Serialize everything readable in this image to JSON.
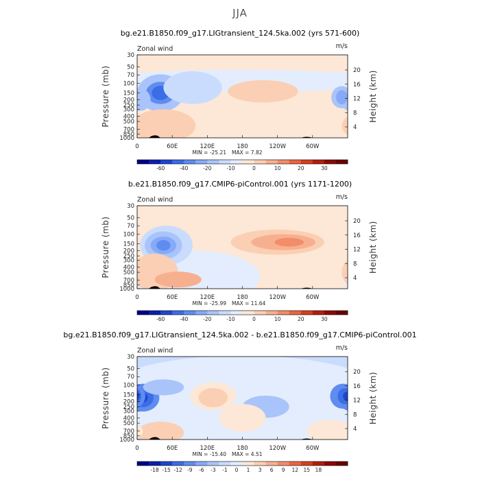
{
  "figure_title": "JJA",
  "chart_data": [
    {
      "type": "heatmap",
      "title": "bg.e21.B1850.f09_g17.LIGtransient_124.5ka.002 (yrs 571-600)",
      "variable": "Zonal wind",
      "units": "m/s",
      "ylabel": "Pressure (mb)",
      "ylabel_right": "Height (km)",
      "x_ticks": [
        "0",
        "60E",
        "120E",
        "180",
        "120W",
        "60W"
      ],
      "x_tick_values": [
        0,
        60,
        120,
        180,
        240,
        300
      ],
      "x_range": [
        0,
        360
      ],
      "y_ticks": [
        "30",
        "50",
        "70",
        "100",
        "150",
        "200",
        "250",
        "300",
        "400",
        "500",
        "700",
        "850",
        "1000"
      ],
      "y_tick_values": [
        30,
        50,
        70,
        100,
        150,
        200,
        250,
        300,
        400,
        500,
        700,
        850,
        1000
      ],
      "height_ticks": [
        "20",
        "16",
        "12",
        "8",
        "4"
      ],
      "min_text": "MIN = -25.21",
      "max_text": "MAX =   7.82",
      "colorbar_levels": [
        "-60",
        "-40",
        "-20",
        "-10",
        "0",
        "10",
        "20",
        "30"
      ],
      "colorbar_colors": [
        "#00008a",
        "#0c1fb0",
        "#1f45d0",
        "#3a6de6",
        "#5f8cf0",
        "#86aaf6",
        "#a9c4fa",
        "#cadcfd",
        "#e3edfe",
        "#fde7d6",
        "#fbcfb3",
        "#f7b08f",
        "#f28c69",
        "#e9663f",
        "#d63f1e",
        "#b21f0b",
        "#8a0a02",
        "#6b0000"
      ],
      "blobs": [
        {
          "x": 180,
          "p": 300,
          "rx": 230,
          "rp": 5.2,
          "level": 9
        },
        {
          "x": 180,
          "p": 90,
          "rx": 260,
          "rp": 1.6,
          "level": 8
        },
        {
          "x": 40,
          "p": 150,
          "rx": 40,
          "rp": 2.2,
          "level": 6
        },
        {
          "x": 40,
          "p": 150,
          "rx": 25,
          "rp": 1.6,
          "level": 4
        },
        {
          "x": 40,
          "p": 150,
          "rx": 15,
          "rp": 1.35,
          "level": 3
        },
        {
          "x": 5,
          "p": 200,
          "rx": 18,
          "rp": 1.6,
          "level": 6
        },
        {
          "x": 350,
          "p": 180,
          "rx": 18,
          "rp": 1.6,
          "level": 6
        },
        {
          "x": 350,
          "p": 180,
          "rx": 10,
          "rp": 1.35,
          "level": 5
        },
        {
          "x": 95,
          "p": 120,
          "rx": 50,
          "rp": 2.0,
          "level": 7
        },
        {
          "x": 215,
          "p": 140,
          "rx": 60,
          "rp": 1.6,
          "level": 10
        },
        {
          "x": 210,
          "p": 145,
          "rx": 32,
          "rp": 1.25,
          "level": 10
        },
        {
          "x": 45,
          "p": 600,
          "rx": 55,
          "rp": 2.0,
          "level": 10
        },
        {
          "x": 45,
          "p": 820,
          "rx": 25,
          "rp": 1.3,
          "level": 10
        }
      ]
    },
    {
      "type": "heatmap",
      "title": "b.e21.B1850.f09_g17.CMIP6-piControl.001 (yrs 1171-1200)",
      "variable": "Zonal wind",
      "units": "m/s",
      "ylabel": "Pressure (mb)",
      "ylabel_right": "Height (km)",
      "x_ticks": [
        "0",
        "60E",
        "120E",
        "180",
        "120W",
        "60W"
      ],
      "x_tick_values": [
        0,
        60,
        120,
        180,
        240,
        300
      ],
      "x_range": [
        0,
        360
      ],
      "y_ticks": [
        "30",
        "50",
        "70",
        "100",
        "150",
        "200",
        "250",
        "300",
        "400",
        "500",
        "700",
        "850",
        "1000"
      ],
      "y_tick_values": [
        30,
        50,
        70,
        100,
        150,
        200,
        250,
        300,
        400,
        500,
        700,
        850,
        1000
      ],
      "height_ticks": [
        "20",
        "16",
        "12",
        "8",
        "4"
      ],
      "min_text": "MIN = -25.99",
      "max_text": "MAX =  11.64",
      "colorbar_levels": [
        "-60",
        "-40",
        "-20",
        "-10",
        "0",
        "10",
        "20",
        "30"
      ],
      "colorbar_colors": [
        "#00008a",
        "#0c1fb0",
        "#1f45d0",
        "#3a6de6",
        "#5f8cf0",
        "#86aaf6",
        "#a9c4fa",
        "#cadcfd",
        "#e3edfe",
        "#fde7d6",
        "#fbcfb3",
        "#f7b08f",
        "#f28c69",
        "#e9663f",
        "#d63f1e",
        "#b21f0b",
        "#8a0a02",
        "#6b0000"
      ],
      "blobs": [
        {
          "x": 180,
          "p": 200,
          "rx": 260,
          "rp": 7.0,
          "level": 9
        },
        {
          "x": 100,
          "p": 600,
          "rx": 110,
          "rp": 3.0,
          "level": 8
        },
        {
          "x": 50,
          "p": 160,
          "rx": 45,
          "rp": 2.3,
          "level": 7
        },
        {
          "x": 45,
          "p": 160,
          "rx": 32,
          "rp": 1.8,
          "level": 6
        },
        {
          "x": 45,
          "p": 160,
          "rx": 22,
          "rp": 1.45,
          "level": 5
        },
        {
          "x": 45,
          "p": 160,
          "rx": 12,
          "rp": 1.25,
          "level": 4
        },
        {
          "x": 240,
          "p": 140,
          "rx": 80,
          "rp": 1.7,
          "level": 10
        },
        {
          "x": 250,
          "p": 140,
          "rx": 55,
          "rp": 1.4,
          "level": 11
        },
        {
          "x": 260,
          "p": 140,
          "rx": 25,
          "rp": 1.2,
          "level": 12
        },
        {
          "x": 30,
          "p": 500,
          "rx": 40,
          "rp": 2.2,
          "level": 10
        },
        {
          "x": 70,
          "p": 680,
          "rx": 40,
          "rp": 1.4,
          "level": 11
        }
      ]
    },
    {
      "type": "heatmap",
      "title": "bg.e21.B1850.f09_g17.LIGtransient_124.5ka.002 - b.e21.B1850.f09_g17.CMIP6-piControl.001",
      "variable": "Zonal wind",
      "units": "m/s",
      "ylabel": "Pressure (mb)",
      "ylabel_right": "Height (km)",
      "x_ticks": [
        "0",
        "60E",
        "120E",
        "180",
        "120W",
        "60W"
      ],
      "x_tick_values": [
        0,
        60,
        120,
        180,
        240,
        300
      ],
      "x_range": [
        0,
        360
      ],
      "y_ticks": [
        "30",
        "50",
        "70",
        "100",
        "150",
        "200",
        "250",
        "300",
        "400",
        "500",
        "700",
        "850",
        "1000"
      ],
      "y_tick_values": [
        30,
        50,
        70,
        100,
        150,
        200,
        250,
        300,
        400,
        500,
        700,
        850,
        1000
      ],
      "height_ticks": [
        "20",
        "16",
        "12",
        "8",
        "4"
      ],
      "min_text": "MIN = -15.40",
      "max_text": "MAX =   4.51",
      "colorbar_levels": [
        "-18",
        "-15",
        "-12",
        "-9",
        "-6",
        "-3",
        "-1",
        "0",
        "1",
        "3",
        "6",
        "9",
        "12",
        "15",
        "18"
      ],
      "colorbar_colors": [
        "#00008a",
        "#0c1fb0",
        "#1f45d0",
        "#3a6de6",
        "#5f8cf0",
        "#86aaf6",
        "#a9c4fa",
        "#cadcfd",
        "#e3edfe",
        "#fde7d6",
        "#fbcfb3",
        "#f7b08f",
        "#f28c69",
        "#e9663f",
        "#d63f1e",
        "#b21f0b",
        "#8a0a02",
        "#6b0000"
      ],
      "background_level": 7,
      "blobs": [
        {
          "x": 180,
          "p": 200,
          "rx": 260,
          "rp": 7.0,
          "level": 8
        },
        {
          "x": 130,
          "p": 160,
          "rx": 40,
          "rp": 1.8,
          "level": 9
        },
        {
          "x": 130,
          "p": 170,
          "rx": 25,
          "rp": 1.5,
          "level": 10
        },
        {
          "x": 10,
          "p": 170,
          "rx": 28,
          "rp": 1.8,
          "level": 4
        },
        {
          "x": 10,
          "p": 170,
          "rx": 18,
          "rp": 1.5,
          "level": 3
        },
        {
          "x": 8,
          "p": 170,
          "rx": 10,
          "rp": 1.25,
          "level": 2
        },
        {
          "x": 352,
          "p": 160,
          "rx": 22,
          "rp": 1.7,
          "level": 4
        },
        {
          "x": 355,
          "p": 160,
          "rx": 12,
          "rp": 1.4,
          "level": 3
        },
        {
          "x": 358,
          "p": 160,
          "rx": 6,
          "rp": 1.2,
          "level": 2
        },
        {
          "x": 45,
          "p": 110,
          "rx": 35,
          "rp": 1.4,
          "level": 6
        },
        {
          "x": 220,
          "p": 250,
          "rx": 40,
          "rp": 1.6,
          "level": 6
        },
        {
          "x": 40,
          "p": 750,
          "rx": 40,
          "rp": 1.6,
          "level": 10
        },
        {
          "x": 330,
          "p": 700,
          "rx": 40,
          "rp": 1.6,
          "level": 9
        },
        {
          "x": 180,
          "p": 400,
          "rx": 40,
          "rp": 1.8,
          "level": 9
        }
      ]
    }
  ]
}
